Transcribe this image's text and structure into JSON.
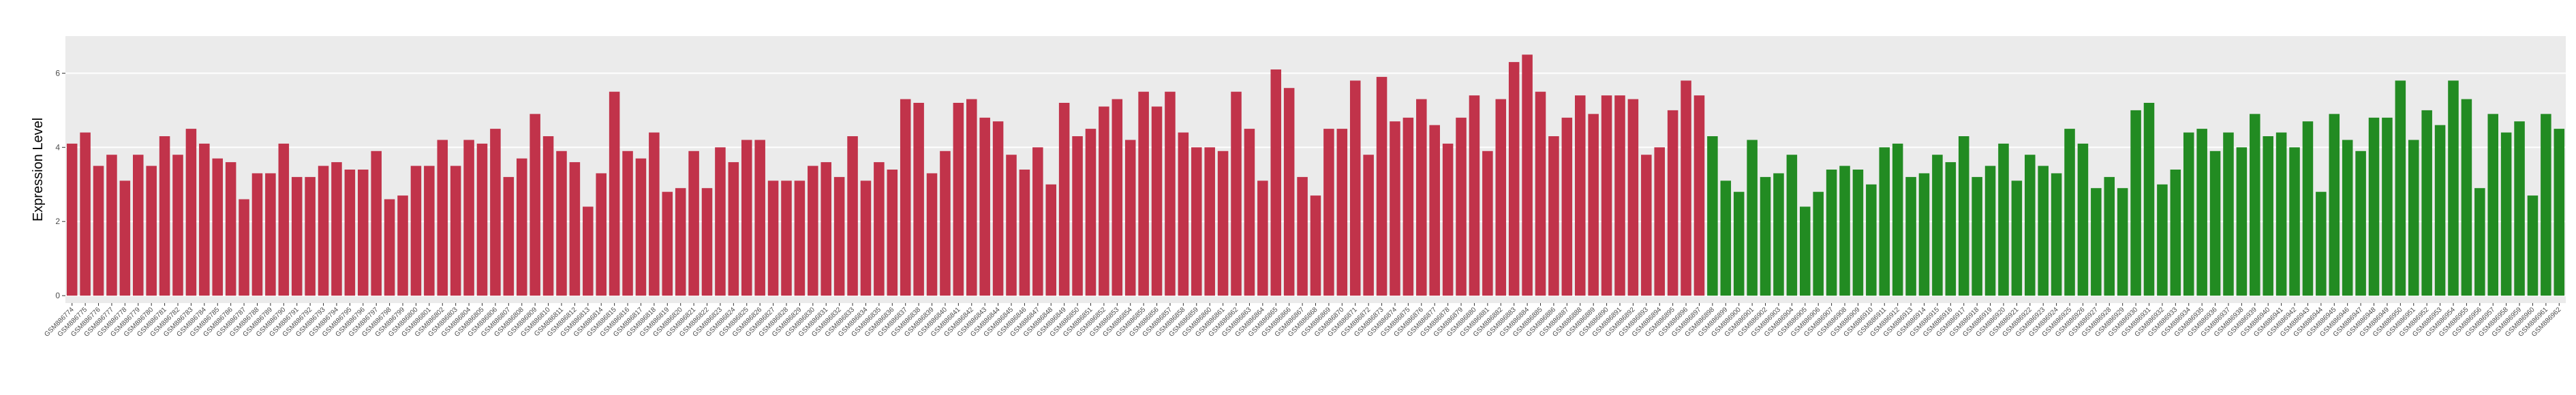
{
  "chart_data": {
    "type": "bar",
    "y_label": "Expression Level",
    "categories": [
      "GSM886774",
      "GSM886775",
      "GSM886776",
      "GSM886777",
      "GSM886778",
      "GSM886779",
      "GSM886780",
      "GSM886781",
      "GSM886782",
      "GSM886783",
      "GSM886784",
      "GSM886785",
      "GSM886786",
      "GSM886787",
      "GSM886788",
      "GSM886789",
      "GSM886790",
      "GSM886791",
      "GSM886792",
      "GSM886793",
      "GSM886794",
      "GSM886795",
      "GSM886796",
      "GSM886797",
      "GSM886798",
      "GSM886799",
      "GSM886800",
      "GSM886801",
      "GSM886802",
      "GSM886803",
      "GSM886804",
      "GSM886805",
      "GSM886806",
      "GSM886807",
      "GSM886808",
      "GSM886809",
      "GSM886810",
      "GSM886811",
      "GSM886812",
      "GSM886813",
      "GSM886814",
      "GSM886815",
      "GSM886816",
      "GSM886817",
      "GSM886818",
      "GSM886819",
      "GSM886820",
      "GSM886821",
      "GSM886822",
      "GSM886823",
      "GSM886824",
      "GSM886825",
      "GSM886826",
      "GSM886827",
      "GSM886828",
      "GSM886829",
      "GSM886830",
      "GSM886831",
      "GSM886832",
      "GSM886833",
      "GSM886834",
      "GSM886835",
      "GSM886836",
      "GSM886837",
      "GSM886838",
      "GSM886839",
      "GSM886840",
      "GSM886841",
      "GSM886842",
      "GSM886843",
      "GSM886844",
      "GSM886845",
      "GSM886846",
      "GSM886847",
      "GSM886848",
      "GSM886849",
      "GSM886850",
      "GSM886851",
      "GSM886852",
      "GSM886853",
      "GSM886854",
      "GSM886855",
      "GSM886856",
      "GSM886857",
      "GSM886858",
      "GSM886859",
      "GSM886860",
      "GSM886861",
      "GSM886862",
      "GSM886863",
      "GSM886864",
      "GSM886865",
      "GSM886866",
      "GSM886867",
      "GSM886868",
      "GSM886869",
      "GSM886870",
      "GSM886871",
      "GSM886872",
      "GSM886873",
      "GSM886874",
      "GSM886875",
      "GSM886876",
      "GSM886877",
      "GSM886878",
      "GSM886879",
      "GSM886880",
      "GSM886881",
      "GSM886882",
      "GSM886883",
      "GSM886884",
      "GSM886885",
      "GSM886886",
      "GSM886887",
      "GSM886888",
      "GSM886889",
      "GSM886890",
      "GSM886891",
      "GSM886892",
      "GSM886893",
      "GSM886894",
      "GSM886895",
      "GSM886896",
      "GSM886897",
      "GSM886898",
      "GSM886899",
      "GSM886900",
      "GSM886901",
      "GSM886902",
      "GSM886903",
      "GSM886904",
      "GSM886905",
      "GSM886906",
      "GSM886907",
      "GSM886908",
      "GSM886909",
      "GSM886910",
      "GSM886911",
      "GSM886912",
      "GSM886913",
      "GSM886914",
      "GSM886915",
      "GSM886916",
      "GSM886917",
      "GSM886918",
      "GSM886919",
      "GSM886920",
      "GSM886921",
      "GSM886922",
      "GSM886923",
      "GSM886924",
      "GSM886925",
      "GSM886926",
      "GSM886927",
      "GSM886928",
      "GSM886929",
      "GSM886930",
      "GSM886931",
      "GSM886932",
      "GSM886933",
      "GSM886934",
      "GSM886935",
      "GSM886936",
      "GSM886937",
      "GSM886938",
      "GSM886939",
      "GSM886940",
      "GSM886941",
      "GSM886942",
      "GSM886943",
      "GSM886944",
      "GSM886945",
      "GSM886946",
      "GSM886947",
      "GSM886948",
      "GSM886949",
      "GSM886950",
      "GSM886951",
      "GSM886952",
      "GSM886953",
      "GSM886954",
      "GSM886955",
      "GSM886956",
      "GSM886957",
      "GSM886958",
      "GSM886959",
      "GSM886960",
      "GSM886961",
      "GSM886962"
    ],
    "series": [
      {
        "color": "#c1334a",
        "values": [
          4.1,
          4.4,
          3.5,
          3.8,
          3.1,
          3.8,
          3.5,
          4.3,
          3.8,
          4.5,
          4.1,
          3.7,
          3.6,
          2.6,
          3.3,
          3.3,
          4.1,
          3.2,
          3.2,
          3.5,
          3.6,
          3.4,
          3.4,
          3.9,
          2.6,
          2.7,
          3.5,
          3.5,
          4.2,
          3.5,
          4.2,
          4.1,
          4.5,
          3.2,
          3.7,
          4.9,
          4.3,
          3.9,
          3.6,
          2.4,
          3.3,
          5.5,
          3.9,
          3.7,
          4.4,
          2.8,
          2.9,
          3.9,
          2.9,
          4.0,
          3.6,
          4.2,
          4.2,
          3.1,
          3.1,
          3.1,
          3.5,
          3.6,
          3.2,
          4.3,
          3.1,
          3.6,
          3.4,
          5.3,
          5.2,
          3.3,
          3.9,
          5.2,
          5.3,
          4.8,
          4.7,
          3.8,
          3.4,
          4.0,
          3.0,
          5.2,
          4.3,
          4.5,
          5.1,
          5.3,
          4.2,
          5.5,
          5.1,
          5.5,
          4.4,
          4.0,
          4.0,
          3.9,
          5.5,
          4.5,
          3.1,
          6.1,
          5.6,
          3.2,
          2.7,
          4.5,
          4.5,
          5.8,
          3.8,
          5.9,
          4.7,
          4.8,
          5.3,
          4.6,
          4.1,
          4.8,
          5.4,
          3.9,
          5.3,
          6.3,
          6.5,
          5.5,
          4.3,
          4.8,
          5.4,
          4.9,
          5.4,
          5.4,
          5.3,
          3.8,
          4.0,
          5.0,
          5.8,
          5.4,
          null,
          null,
          null,
          null,
          null,
          null,
          null,
          null,
          null,
          null,
          null,
          null,
          null,
          null,
          null,
          null,
          null,
          null,
          null,
          null,
          null,
          null,
          null,
          null,
          null,
          null,
          null,
          null,
          null,
          null,
          null,
          null,
          null,
          null,
          null,
          null,
          null,
          null,
          null,
          null,
          null,
          null,
          null,
          null,
          null,
          null,
          null,
          null,
          null,
          null,
          null,
          null,
          null,
          null,
          null,
          null,
          null,
          null,
          null,
          null,
          null,
          null,
          null,
          null,
          null
        ]
      },
      {
        "color": "#228b22",
        "values": [
          null,
          null,
          null,
          null,
          null,
          null,
          null,
          null,
          null,
          null,
          null,
          null,
          null,
          null,
          null,
          null,
          null,
          null,
          null,
          null,
          null,
          null,
          null,
          null,
          null,
          null,
          null,
          null,
          null,
          null,
          null,
          null,
          null,
          null,
          null,
          null,
          null,
          null,
          null,
          null,
          null,
          null,
          null,
          null,
          null,
          null,
          null,
          null,
          null,
          null,
          null,
          null,
          null,
          null,
          null,
          null,
          null,
          null,
          null,
          null,
          null,
          null,
          null,
          null,
          null,
          null,
          null,
          null,
          null,
          null,
          null,
          null,
          null,
          null,
          null,
          null,
          null,
          null,
          null,
          null,
          null,
          null,
          null,
          null,
          null,
          null,
          null,
          null,
          null,
          null,
          null,
          null,
          null,
          null,
          null,
          null,
          null,
          null,
          null,
          null,
          null,
          null,
          null,
          null,
          null,
          null,
          null,
          null,
          null,
          null,
          null,
          null,
          null,
          null,
          null,
          null,
          null,
          null,
          null,
          null,
          null,
          null,
          null,
          null,
          4.3,
          3.1,
          2.8,
          4.2,
          3.2,
          3.3,
          3.8,
          2.4,
          2.8,
          3.4,
          3.5,
          3.4,
          3.0,
          4.0,
          4.1,
          3.2,
          3.3,
          3.8,
          3.6,
          4.3,
          3.2,
          3.5,
          4.1,
          3.1,
          3.8,
          3.5,
          3.3,
          4.5,
          4.1,
          2.9,
          3.2,
          2.9,
          5.0,
          5.2,
          3.0,
          3.4,
          4.4,
          4.5,
          3.9,
          4.4,
          4.0,
          4.9,
          4.3,
          4.4,
          4.0,
          4.7,
          2.8,
          4.9,
          4.2,
          3.9,
          4.8,
          4.8,
          5.8,
          4.2,
          5.0,
          4.6,
          5.8,
          5.3,
          2.9,
          4.9,
          4.4,
          4.7,
          2.7,
          4.9,
          4.5
        ]
      }
    ],
    "ylim": [
      -0.2,
      7.0
    ],
    "yticks": [
      0,
      2,
      4,
      6
    ],
    "grid": true
  }
}
